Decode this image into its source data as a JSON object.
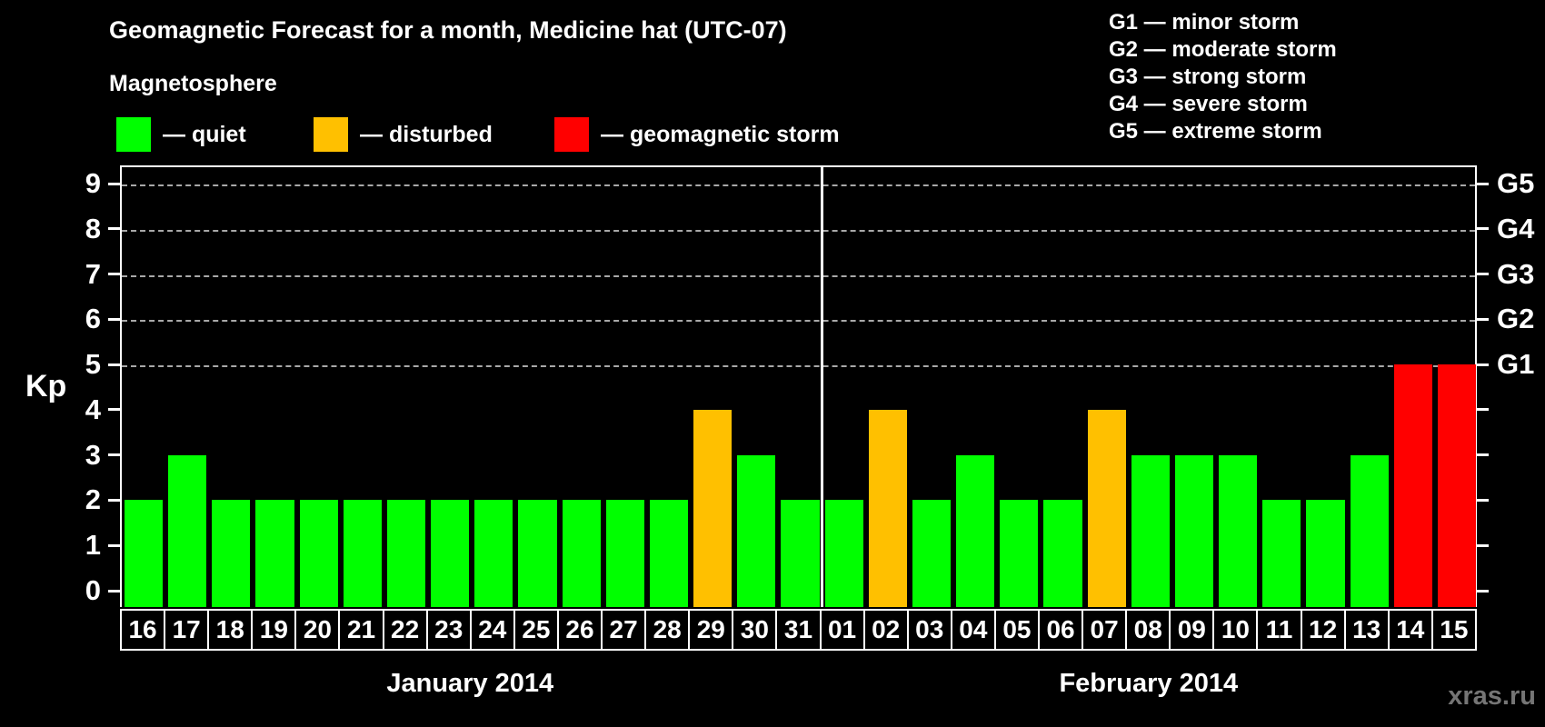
{
  "header": {
    "title": "Geomagnetic Forecast for a month, Medicine hat (UTC-07)",
    "subtitle": "Magnetosphere",
    "legend": [
      {
        "key": "quiet",
        "label": "— quiet",
        "color": "#00ff00"
      },
      {
        "key": "disturbed",
        "label": "— disturbed",
        "color": "#ffc000"
      },
      {
        "key": "storm",
        "label": "— geomagnetic storm",
        "color": "#ff0000"
      }
    ],
    "g_legend": [
      "G1 — minor storm",
      "G2 — moderate storm",
      "G3 — strong storm",
      "G4 — severe storm",
      "G5 — extreme storm"
    ]
  },
  "watermark": "xras.ru",
  "chart_data": {
    "type": "bar",
    "title": "Geomagnetic Forecast for a month, Medicine hat (UTC-07)",
    "ylabel": "Kp",
    "yticks": [
      0,
      1,
      2,
      3,
      4,
      5,
      6,
      7,
      8,
      9
    ],
    "ylim": [
      -0.36,
      9.4
    ],
    "gridlines_y": [
      5,
      6,
      7,
      8,
      9
    ],
    "grid": "dashed-upper-only",
    "legend_position": "top",
    "right_axis_labels": [
      {
        "kp": 5,
        "label": "G1"
      },
      {
        "kp": 6,
        "label": "G2"
      },
      {
        "kp": 7,
        "label": "G3"
      },
      {
        "kp": 8,
        "label": "G4"
      },
      {
        "kp": 9,
        "label": "G5"
      }
    ],
    "status_colors": {
      "quiet": "#00ff00",
      "disturbed": "#ffc000",
      "storm": "#ff0000"
    },
    "months": [
      {
        "label": "January 2014",
        "days": [
          {
            "day": "16",
            "kp": 2,
            "status": "quiet"
          },
          {
            "day": "17",
            "kp": 3,
            "status": "quiet"
          },
          {
            "day": "18",
            "kp": 2,
            "status": "quiet"
          },
          {
            "day": "19",
            "kp": 2,
            "status": "quiet"
          },
          {
            "day": "20",
            "kp": 2,
            "status": "quiet"
          },
          {
            "day": "21",
            "kp": 2,
            "status": "quiet"
          },
          {
            "day": "22",
            "kp": 2,
            "status": "quiet"
          },
          {
            "day": "23",
            "kp": 2,
            "status": "quiet"
          },
          {
            "day": "24",
            "kp": 2,
            "status": "quiet"
          },
          {
            "day": "25",
            "kp": 2,
            "status": "quiet"
          },
          {
            "day": "26",
            "kp": 2,
            "status": "quiet"
          },
          {
            "day": "27",
            "kp": 2,
            "status": "quiet"
          },
          {
            "day": "28",
            "kp": 2,
            "status": "quiet"
          },
          {
            "day": "29",
            "kp": 4,
            "status": "disturbed"
          },
          {
            "day": "30",
            "kp": 3,
            "status": "quiet"
          },
          {
            "day": "31",
            "kp": 2,
            "status": "quiet"
          }
        ]
      },
      {
        "label": "February 2014",
        "days": [
          {
            "day": "01",
            "kp": 2,
            "status": "quiet"
          },
          {
            "day": "02",
            "kp": 4,
            "status": "disturbed"
          },
          {
            "day": "03",
            "kp": 2,
            "status": "quiet"
          },
          {
            "day": "04",
            "kp": 3,
            "status": "quiet"
          },
          {
            "day": "05",
            "kp": 2,
            "status": "quiet"
          },
          {
            "day": "06",
            "kp": 2,
            "status": "quiet"
          },
          {
            "day": "07",
            "kp": 4,
            "status": "disturbed"
          },
          {
            "day": "08",
            "kp": 3,
            "status": "quiet"
          },
          {
            "day": "09",
            "kp": 3,
            "status": "quiet"
          },
          {
            "day": "10",
            "kp": 3,
            "status": "quiet"
          },
          {
            "day": "11",
            "kp": 2,
            "status": "quiet"
          },
          {
            "day": "12",
            "kp": 2,
            "status": "quiet"
          },
          {
            "day": "13",
            "kp": 3,
            "status": "quiet"
          },
          {
            "day": "14",
            "kp": 5,
            "status": "storm"
          },
          {
            "day": "15",
            "kp": 5,
            "status": "storm"
          }
        ]
      }
    ]
  }
}
